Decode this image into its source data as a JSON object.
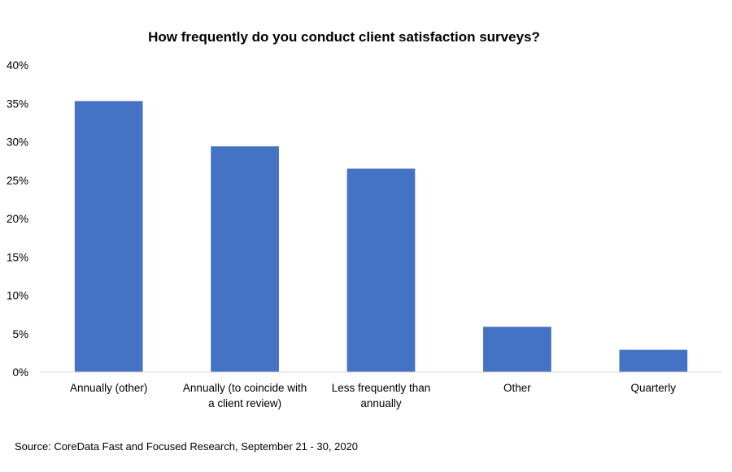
{
  "chart_data": {
    "type": "bar",
    "title": "How frequently do you conduct client satisfaction surveys?",
    "categories": [
      [
        "Annually (other)"
      ],
      [
        "Annually (to coincide with",
        "a client review)"
      ],
      [
        "Less frequently than",
        "annually"
      ],
      [
        "Other"
      ],
      [
        "Quarterly"
      ]
    ],
    "values": [
      35.3,
      29.4,
      26.5,
      5.9,
      2.9
    ],
    "ylim": [
      0,
      40
    ],
    "yticks": [
      0,
      5,
      10,
      15,
      20,
      25,
      30,
      35,
      40
    ],
    "ytick_labels": [
      "0%",
      "5%",
      "10%",
      "15%",
      "20%",
      "25%",
      "30%",
      "35%",
      "40%"
    ],
    "xlabel": "",
    "ylabel": "",
    "grid": false,
    "legend": "none",
    "bar_color": "#4472C4",
    "axis_color": "#D9D9D9"
  },
  "source": "Source: CoreData Fast and Focused Research, September 21 - 30, 2020"
}
